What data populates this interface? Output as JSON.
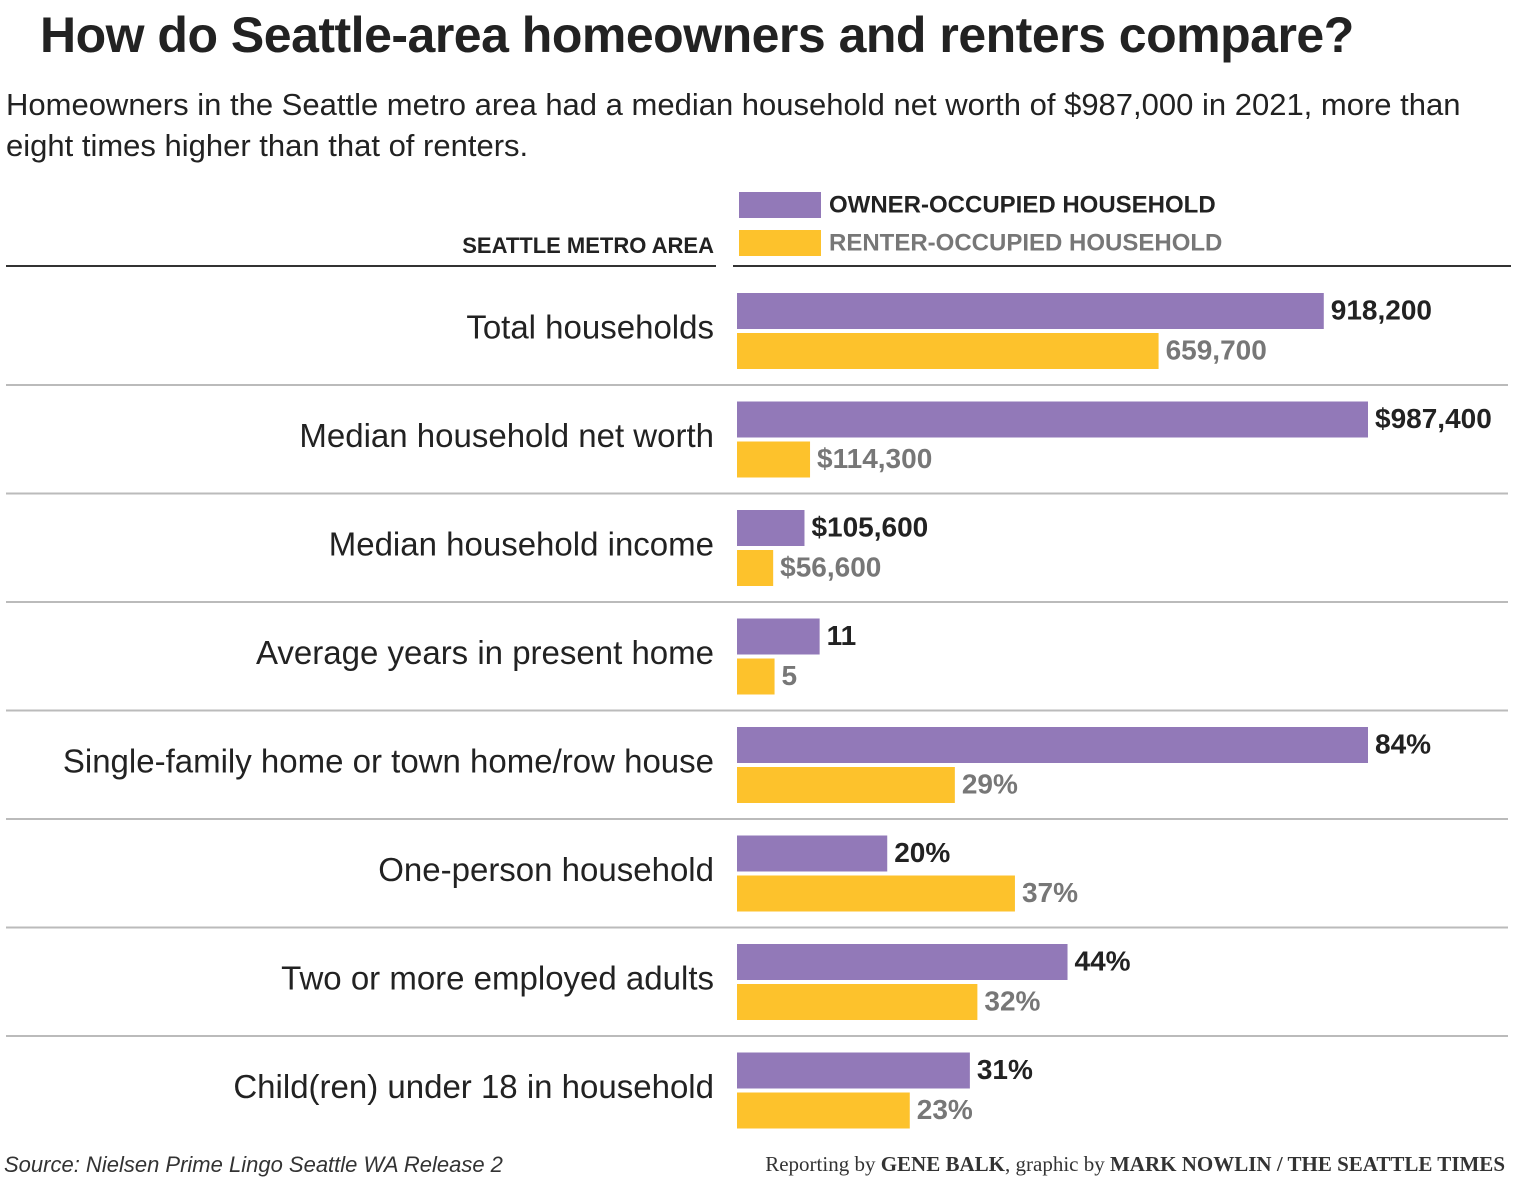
{
  "chart_data": {
    "type": "grouped-bar",
    "title": "How do Seattle-area homeowners and renters compare?",
    "subtitle": "Homeowners in the Seattle metro area had a median household net worth of $987,000 in 2021, more than eight times higher than that of renters.",
    "category_header": "SEATTLE METRO AREA",
    "categories": [
      "Total households",
      "Median household net worth",
      "Median household income",
      "Average years in present home",
      "Single-family home or town home/row house",
      "One-person household",
      "Two or more employed adults",
      "Child(ren) under 18 in household"
    ],
    "series": [
      {
        "name": "OWNER-OCCUPIED HOUSEHOLD",
        "color": "#9279b8",
        "values": [
          918200,
          987400,
          105600,
          11,
          84,
          20,
          44,
          31
        ],
        "value_labels": [
          "918,200",
          "$987,400",
          "$105,600",
          "11",
          "84%",
          "20%",
          "44%",
          "31%"
        ]
      },
      {
        "name": "RENTER-OCCUPIED HOUSEHOLD",
        "color": "#fdc22c",
        "values": [
          659700,
          114300,
          56600,
          5,
          29,
          37,
          32,
          23
        ],
        "value_labels": [
          "659,700",
          "$114,300",
          "$56,600",
          "5",
          "29%",
          "37%",
          "32%",
          "23%"
        ]
      }
    ],
    "source": "Source: Nielsen Prime Lingo Seattle WA Release 2",
    "credit": [
      "Reporting by ",
      "GENE BALK",
      ", graphic by ",
      "MARK NOWLIN / THE SEATTLE TIMES"
    ]
  }
}
